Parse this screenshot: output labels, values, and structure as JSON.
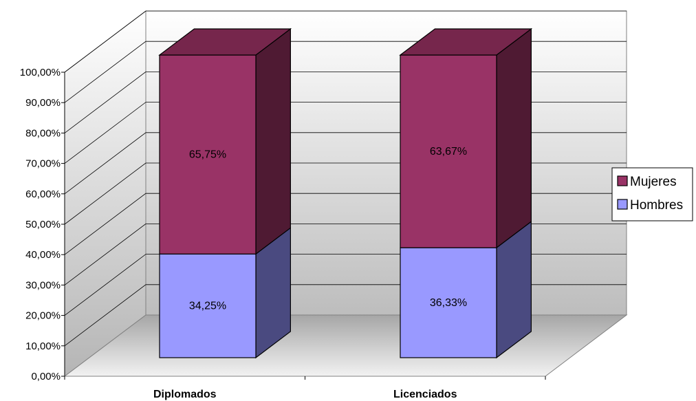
{
  "chart_data": {
    "type": "bar",
    "stacked": true,
    "percent_stacked": true,
    "three_d": true,
    "categories": [
      "Diplomados",
      "Licenciados"
    ],
    "series": [
      {
        "name": "Hombres",
        "values": [
          34.25,
          36.33
        ],
        "labels": [
          "34,25%",
          "36,33%"
        ],
        "color": "#9999ff",
        "side_color": "#4a4a80"
      },
      {
        "name": "Mujeres",
        "values": [
          65.75,
          63.67
        ],
        "labels": [
          "65,75%",
          "63,67%"
        ],
        "color": "#993366",
        "side_color": "#4f1a33",
        "top_color": "#76264c"
      }
    ],
    "ylim": [
      0,
      100
    ],
    "y_ticks": [
      "0,00%",
      "10,00%",
      "20,00%",
      "30,00%",
      "40,00%",
      "50,00%",
      "60,00%",
      "70,00%",
      "80,00%",
      "90,00%",
      "100,00%"
    ],
    "grid": true,
    "legend_position": "right",
    "title": "",
    "xlabel": "",
    "ylabel": ""
  }
}
